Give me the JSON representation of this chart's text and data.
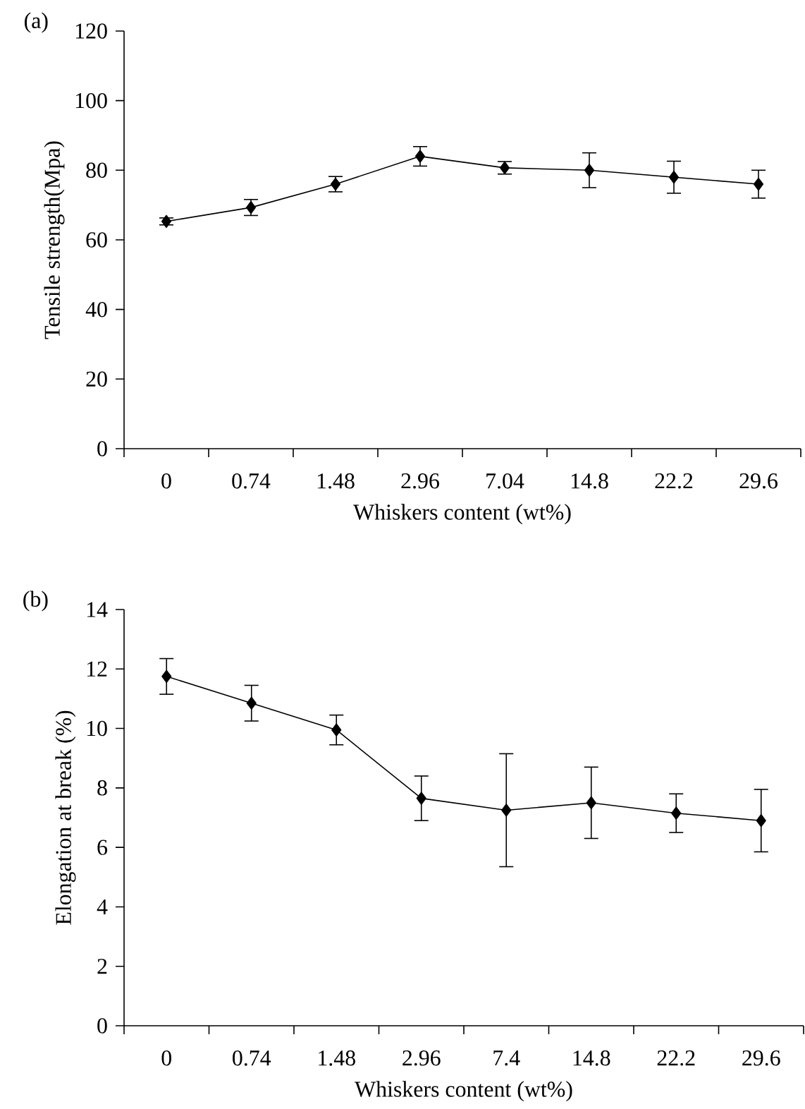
{
  "chart_data": [
    {
      "type": "line",
      "title": "(a)",
      "xlabel": "Whiskers content (wt%)",
      "ylabel": "Tensile strength(Mpa)",
      "categories": [
        "0",
        "0.74",
        "1.48",
        "2.96",
        "7.04",
        "14.8",
        "22.2",
        "29.6"
      ],
      "values": [
        65.3,
        69.3,
        76,
        84,
        80.7,
        80,
        78,
        76
      ],
      "errors": [
        1,
        2.3,
        2.2,
        2.8,
        1.8,
        5,
        4.6,
        4
      ],
      "color": "#000000",
      "marker": "diamond",
      "line_style": "solid",
      "ylim": [
        0,
        120
      ],
      "yticks": [
        0,
        20,
        40,
        60,
        80,
        100,
        120
      ]
    },
    {
      "type": "line",
      "title": "(b)",
      "xlabel": "Whiskers content (wt%)",
      "ylabel": "Elongation at break (%)",
      "categories": [
        "0",
        "0.74",
        "1.48",
        "2.96",
        "7.4",
        "14.8",
        "22.2",
        "29.6"
      ],
      "values": [
        11.75,
        10.85,
        9.95,
        7.65,
        7.25,
        7.5,
        7.15,
        6.9
      ],
      "errors": [
        0.6,
        0.6,
        0.5,
        0.75,
        1.9,
        1.2,
        0.65,
        1.05
      ],
      "color": "#000000",
      "marker": "diamond",
      "line_style": "solid",
      "ylim": [
        0,
        14
      ],
      "yticks": [
        0,
        2,
        4,
        6,
        8,
        10,
        12,
        14
      ]
    }
  ]
}
